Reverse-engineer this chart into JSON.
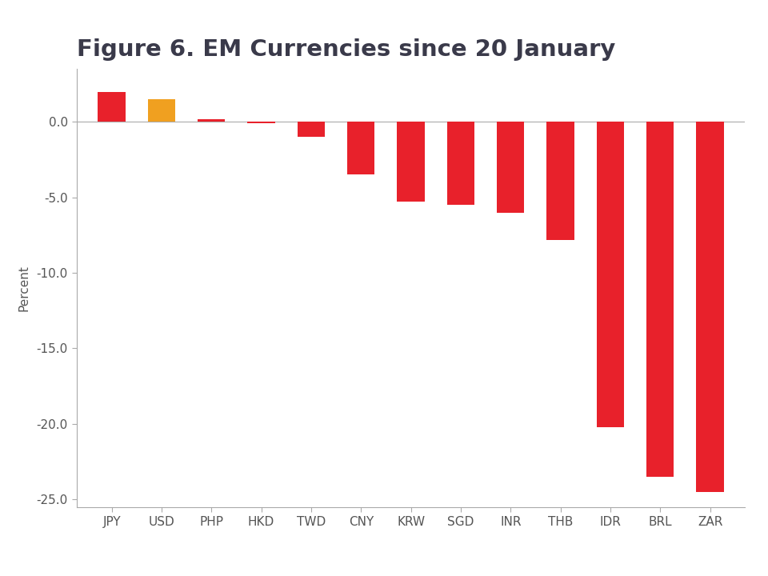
{
  "categories": [
    "JPY",
    "USD",
    "PHP",
    "HKD",
    "TWD",
    "CNY",
    "KRW",
    "SGD",
    "INR",
    "THB",
    "IDR",
    "BRL",
    "ZAR"
  ],
  "values": [
    2.0,
    1.5,
    0.2,
    -0.1,
    -1.0,
    -3.5,
    -5.3,
    -5.5,
    -6.0,
    -7.8,
    -20.2,
    -23.5,
    -24.5
  ],
  "bar_colors": [
    "#e8212b",
    "#f0a020",
    "#e8212b",
    "#e8212b",
    "#e8212b",
    "#e8212b",
    "#e8212b",
    "#e8212b",
    "#e8212b",
    "#e8212b",
    "#e8212b",
    "#e8212b",
    "#e8212b"
  ],
  "title": "Figure 6. EM Currencies since 20 January",
  "ylabel": "Percent",
  "ylim": [
    -25.5,
    3.5
  ],
  "yticks": [
    0.0,
    -5.0,
    -10.0,
    -15.0,
    -20.0,
    -25.0
  ],
  "ytick_labels": [
    "0.0",
    "-5.0",
    "-10.0",
    "-15.0",
    "-20.0",
    "-25.0"
  ],
  "background_color": "#ffffff",
  "title_fontsize": 21,
  "title_color": "#3a3a4a",
  "axis_label_fontsize": 11,
  "tick_fontsize": 11,
  "bar_width": 0.55,
  "spine_color": "#aaaaaa",
  "zero_line_color": "#aaaaaa",
  "ytick_color": "#555555",
  "xtick_color": "#555555"
}
